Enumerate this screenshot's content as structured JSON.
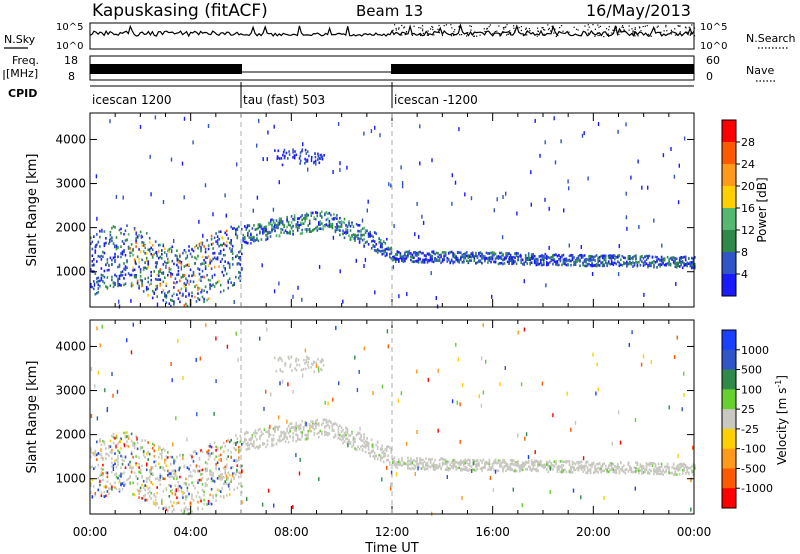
{
  "header": {
    "station": "Kapuskasing (fitACF)",
    "beam": "Beam 13",
    "date": "16/May/2013"
  },
  "top_panels": {
    "nsky_label": "N.Sky",
    "nsearch_label": "N.Search",
    "nsky_ticks": [
      "10^5",
      "10^0"
    ],
    "nsearch_ticks": [
      "10^5",
      "10^0"
    ],
    "freq_label_1": "Freq.",
    "freq_label_2": "[MHz]",
    "freq_ticks": [
      "18",
      "8"
    ],
    "nave_label": "Nave",
    "nave_ticks": [
      "60",
      "0"
    ],
    "cpid_label": "CPID",
    "cpid_segments": [
      {
        "name": "icescan 1200",
        "start": 0,
        "end": 6
      },
      {
        "name": "tau (fast) 503",
        "start": 6,
        "end": 12
      },
      {
        "name": "icescan -1200",
        "start": 12,
        "end": 24
      }
    ]
  },
  "axes": {
    "ylabel": "Slant Range [km]",
    "xlabel": "Time UT",
    "xticks": [
      "00:00",
      "04:00",
      "08:00",
      "12:00",
      "16:00",
      "20:00",
      "00:00"
    ],
    "xtick_hours": [
      0,
      4,
      8,
      12,
      16,
      20,
      24
    ],
    "yticks": [
      "4000",
      "3000",
      "2000",
      "1000"
    ],
    "ytick_values": [
      4000,
      3000,
      2000,
      1000
    ],
    "xlim": [
      0,
      24
    ],
    "ylim": [
      200,
      4600
    ]
  },
  "chart_data": [
    {
      "type": "heatmap",
      "name": "power",
      "colorbar_label": "Power [dB]",
      "colorbar_ticks": [
        "28",
        "24",
        "20",
        "16",
        "12",
        "8",
        "4"
      ],
      "colorbar_values": [
        28,
        24,
        20,
        16,
        12,
        8,
        4
      ],
      "range": [
        0,
        32
      ],
      "colors": [
        "#1a1aff",
        "#2f55c6",
        "#2f8a4a",
        "#55b870",
        "#ffd000",
        "#ff9a1a",
        "#ff5a00",
        "#ff0000"
      ],
      "features": [
        {
          "label": "echo band 00-06 UT",
          "hours": [
            0,
            6
          ],
          "range_km": [
            700,
            1700
          ],
          "power_db": 10
        },
        {
          "label": "ionospheric arc 06-12 UT",
          "hours": [
            6,
            12
          ],
          "range_km": [
            1300,
            2350
          ],
          "power_db": 9
        },
        {
          "label": "near-range band 12-24 UT",
          "hours": [
            12,
            24
          ],
          "range_km": [
            1100,
            1500
          ],
          "power_db": 7
        },
        {
          "label": "far-range patch",
          "hours": [
            7.3,
            9.2
          ],
          "range_km": [
            3450,
            3800
          ],
          "power_db": 5
        }
      ]
    },
    {
      "type": "heatmap",
      "name": "velocity",
      "colorbar_label": "Velocity [m s",
      "colorbar_label_sup": "-1",
      "colorbar_label_end": "]",
      "colorbar_ticks": [
        "1000",
        "500",
        "100",
        "25",
        "-25",
        "-100",
        "-500",
        "-1000"
      ],
      "colorbar_values": [
        1000,
        500,
        100,
        25,
        -25,
        -100,
        -500,
        -1000
      ],
      "colors": [
        "#1a40ff",
        "#2f55c6",
        "#2f8a4a",
        "#66d030",
        "#c8c8c0",
        "#ffd000",
        "#ff9a1a",
        "#ff5a00",
        "#ff0000"
      ],
      "features": [
        {
          "label": "ground scatter band",
          "hours": [
            0,
            24
          ],
          "range_km": [
            900,
            2350
          ],
          "velocity_ms": 0
        },
        {
          "label": "mixed velocity echoes",
          "hours": [
            2,
            6
          ],
          "range_km": [
            500,
            1700
          ],
          "velocity_ms": -150
        }
      ]
    }
  ]
}
